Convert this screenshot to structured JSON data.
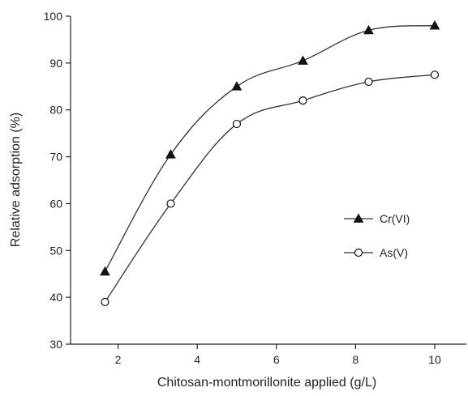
{
  "chart_data": {
    "type": "line",
    "title": "",
    "xlabel": "Chitosan-montmorillonite applied (g/L)",
    "ylabel": "Relative adsorption (%)",
    "xlim": [
      0.8,
      10.8
    ],
    "ylim": [
      30,
      100
    ],
    "xticks": [
      2,
      4,
      6,
      8,
      10
    ],
    "yticks": [
      30,
      40,
      50,
      60,
      70,
      80,
      90,
      100
    ],
    "grid": false,
    "legend_position": "right-middle",
    "x": [
      1.67,
      3.33,
      5.0,
      6.67,
      8.33,
      10.0
    ],
    "series": [
      {
        "name": "Cr(VI)",
        "marker": "filled-triangle",
        "values": [
          45.5,
          70.5,
          85.0,
          90.5,
          97.0,
          98.0
        ]
      },
      {
        "name": "As(V)",
        "marker": "open-circle",
        "values": [
          39.0,
          60.0,
          77.0,
          82.0,
          86.0,
          87.5
        ]
      }
    ]
  }
}
